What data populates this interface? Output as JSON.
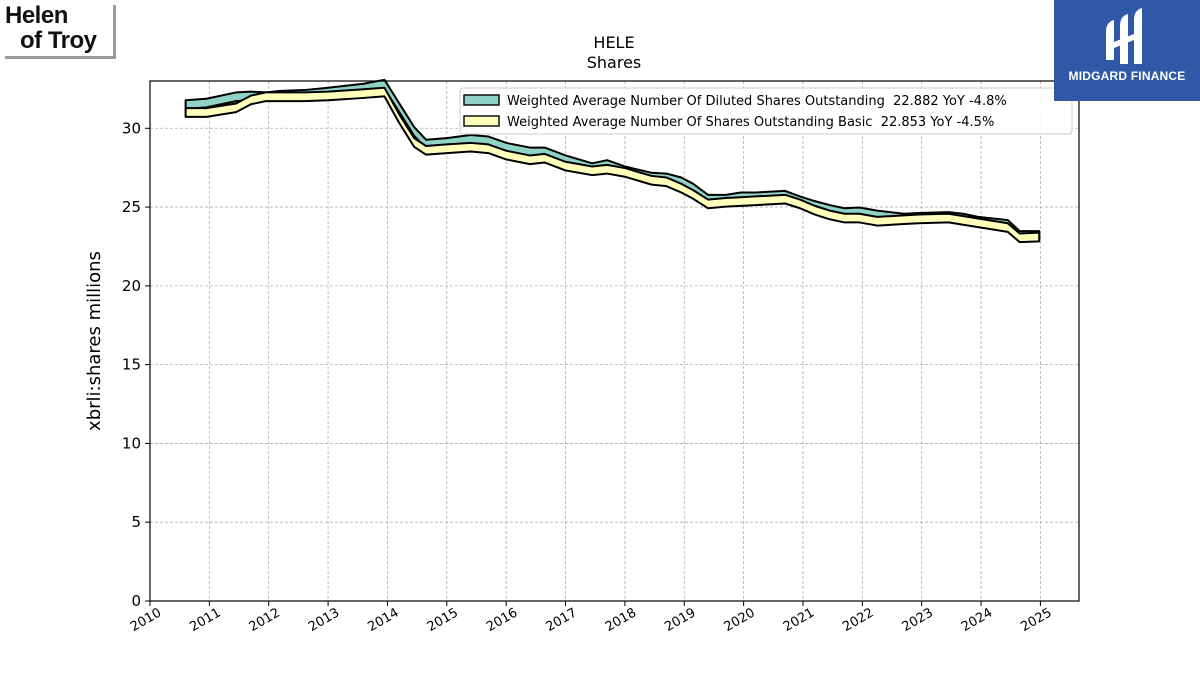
{
  "logos": {
    "left_line1": "Helen",
    "left_line2": "of Troy",
    "right_brand": "MIDGARD FINANCE"
  },
  "colors": {
    "diluted_fill": "#8fd3c6",
    "basic_fill": "#ffffbb",
    "line": "#000000",
    "grid": "#b0b0b0",
    "brand_blue": "#2f58a6"
  },
  "chart_data": {
    "type": "area",
    "title": "HELE",
    "subtitle": "Shares",
    "ylabel": "xbrli:shares millions",
    "xlabel": "",
    "ylim": [
      0,
      33
    ],
    "xlim": [
      2010.0,
      2025.65
    ],
    "grid": true,
    "legend_position": "top-right",
    "x_ticks": [
      "2010",
      "2011",
      "2012",
      "2013",
      "2014",
      "2015",
      "2016",
      "2017",
      "2018",
      "2019",
      "2020",
      "2021",
      "2022",
      "2023",
      "2024",
      "2025"
    ],
    "y_ticks": [
      "0",
      "5",
      "10",
      "15",
      "20",
      "25",
      "30"
    ],
    "series": [
      {
        "name": "Weighted Average Number Of Diluted Shares Outstanding  22.882 YoY -4.8%",
        "x": [
          2010.6,
          2010.95,
          2011.45,
          2011.7,
          2011.95,
          2012.2,
          2012.6,
          2013.0,
          2013.6,
          2013.95,
          2014.2,
          2014.45,
          2014.65,
          2015.0,
          2015.4,
          2015.7,
          2016.0,
          2016.4,
          2016.65,
          2017.0,
          2017.45,
          2017.7,
          2018.0,
          2018.45,
          2018.7,
          2018.95,
          2019.15,
          2019.4,
          2019.7,
          2019.95,
          2020.2,
          2020.7,
          2020.95,
          2021.2,
          2021.45,
          2021.7,
          2021.95,
          2022.25,
          2022.7,
          2022.95,
          2023.45,
          2023.7,
          2023.95,
          2024.45,
          2024.65,
          2024.98
        ],
        "values": [
          31.5,
          31.6,
          32.0,
          32.05,
          32.0,
          32.1,
          32.15,
          32.3,
          32.55,
          32.8,
          31.3,
          29.8,
          29.0,
          29.1,
          29.3,
          29.2,
          28.8,
          28.5,
          28.5,
          28.0,
          27.5,
          27.7,
          27.3,
          26.9,
          26.85,
          26.6,
          26.2,
          25.5,
          25.5,
          25.65,
          25.65,
          25.75,
          25.4,
          25.1,
          24.85,
          24.65,
          24.7,
          24.5,
          24.3,
          24.35,
          24.4,
          24.3,
          24.1,
          23.9,
          23.2,
          23.2
        ]
      },
      {
        "name": "Weighted Average Number Of Shares Outstanding Basic  22.853 YoY -4.5%",
        "x": [
          2010.6,
          2010.95,
          2011.45,
          2011.7,
          2011.95,
          2012.2,
          2012.6,
          2013.0,
          2013.6,
          2013.95,
          2014.2,
          2014.45,
          2014.65,
          2015.0,
          2015.4,
          2015.7,
          2016.0,
          2016.4,
          2016.65,
          2017.0,
          2017.45,
          2017.7,
          2018.0,
          2018.45,
          2018.7,
          2018.95,
          2019.15,
          2019.4,
          2019.7,
          2019.95,
          2020.2,
          2020.7,
          2020.95,
          2021.2,
          2021.45,
          2021.7,
          2021.95,
          2022.25,
          2022.7,
          2022.95,
          2023.45,
          2023.7,
          2023.95,
          2024.45,
          2024.65,
          2024.98
        ],
        "values": [
          31.0,
          31.0,
          31.3,
          31.8,
          32.0,
          32.0,
          32.0,
          32.05,
          32.2,
          32.3,
          30.6,
          29.1,
          28.6,
          28.7,
          28.8,
          28.7,
          28.3,
          28.0,
          28.1,
          27.6,
          27.3,
          27.4,
          27.2,
          26.7,
          26.6,
          26.2,
          25.8,
          25.2,
          25.3,
          25.35,
          25.4,
          25.5,
          25.2,
          24.8,
          24.5,
          24.3,
          24.3,
          24.1,
          24.2,
          24.25,
          24.3,
          24.15,
          24.0,
          23.7,
          23.05,
          23.1
        ]
      }
    ]
  }
}
